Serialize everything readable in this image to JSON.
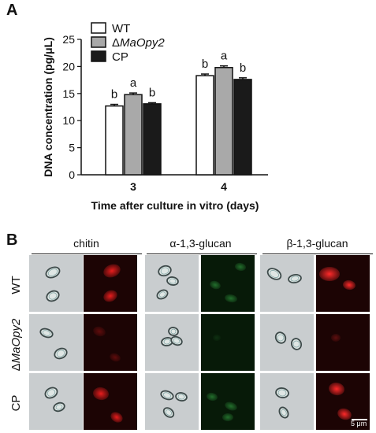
{
  "panel_a_label": "A",
  "panel_b_label": "B",
  "chart_data": {
    "type": "bar",
    "categories": [
      "3",
      "4"
    ],
    "series": [
      {
        "name": "WT",
        "values": [
          12.7,
          18.3
        ],
        "errors": [
          0.3,
          0.3
        ],
        "letters": [
          "b",
          "b"
        ],
        "color": "#ffffff"
      },
      {
        "name": "ΔMaOpy2",
        "values": [
          14.8,
          19.8
        ],
        "errors": [
          0.3,
          0.3
        ],
        "letters": [
          "a",
          "a"
        ],
        "color": "#a9a9a9"
      },
      {
        "name": "CP",
        "values": [
          13.1,
          17.6
        ],
        "errors": [
          0.2,
          0.3
        ],
        "letters": [
          "b",
          "b"
        ],
        "color": "#1a1a1a"
      }
    ],
    "xlabel": "Time after culture in vitro (days)",
    "ylabel": "DNA concentration (pg/μL)",
    "ylim": [
      0,
      25
    ],
    "yticks": [
      0,
      5,
      10,
      15,
      20,
      25
    ],
    "legend_position": "top-left"
  },
  "panel_b": {
    "columns": [
      "chitin",
      "α-1,3-glucan",
      "β-1,3-glucan"
    ],
    "rows": [
      {
        "label": "WT",
        "italic_part": ""
      },
      {
        "label_prefix": "Δ",
        "italic_part": "MaOpy2"
      },
      {
        "label": "CP",
        "italic_part": ""
      }
    ],
    "scale_bar": "5 μm"
  }
}
